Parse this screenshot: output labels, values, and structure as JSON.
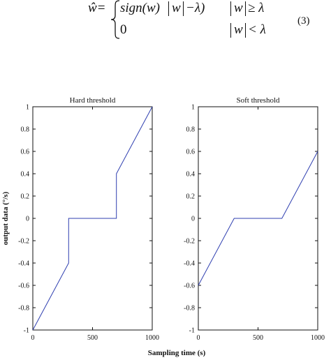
{
  "equation": {
    "lhs": "ŵ=",
    "case1_expr_a": "sign(w)",
    "case1_expr_b": "w",
    "case1_expr_c": "−λ)",
    "case1_cond_a": "w",
    "case1_cond_b": "≥ λ",
    "case2_expr": "0",
    "case2_cond_a": "w",
    "case2_cond_b": "< λ",
    "number": "(3)"
  },
  "figure": {
    "shared_ylabel": "output data (°/s)",
    "shared_xlabel": "Sampling time (s)"
  },
  "chart_data": [
    {
      "type": "line",
      "title": "Hard threshold",
      "xlabel": "",
      "ylabel": "output data (°/s)",
      "xlim": [
        0,
        1000
      ],
      "ylim": [
        -1,
        1
      ],
      "xticks": [
        0,
        500,
        1000
      ],
      "xtick_labels": [
        "0",
        "500",
        "1000"
      ],
      "yticks": [
        -1,
        -0.8,
        -0.6,
        -0.4,
        -0.2,
        0,
        0.2,
        0.4,
        0.6,
        0.8,
        1
      ],
      "ytick_labels": [
        "-1",
        "-0.8",
        "-0.6",
        "-0.4",
        "-0.2",
        "0",
        "0.2",
        "0.4",
        "0.6",
        "0.8",
        "1"
      ],
      "grid": false,
      "color": "#2f3fb0",
      "series": [
        {
          "x": [
            0,
            300,
            300,
            700,
            700,
            1000
          ],
          "y": [
            -1,
            -0.4,
            0,
            0,
            0.4,
            1
          ]
        }
      ]
    },
    {
      "type": "line",
      "title": "Soft threshold",
      "xlabel": "",
      "ylabel": "",
      "xlim": [
        0,
        1000
      ],
      "ylim": [
        -1,
        1
      ],
      "xticks": [
        0,
        500,
        1000
      ],
      "xtick_labels": [
        "0",
        "500",
        "1000"
      ],
      "yticks": [
        -1,
        -0.8,
        -0.6,
        -0.4,
        -0.2,
        0,
        0.2,
        0.4,
        0.6,
        0.8,
        1
      ],
      "ytick_labels": [
        "-1",
        "-0.8",
        "-0.6",
        "-0.4",
        "-0.2",
        "0",
        "0.2",
        "0.4",
        "0.6",
        "0.8",
        "1"
      ],
      "grid": false,
      "color": "#2f3fb0",
      "series": [
        {
          "x": [
            0,
            300,
            700,
            1000
          ],
          "y": [
            -0.6,
            0,
            0,
            0.6
          ]
        }
      ]
    }
  ]
}
